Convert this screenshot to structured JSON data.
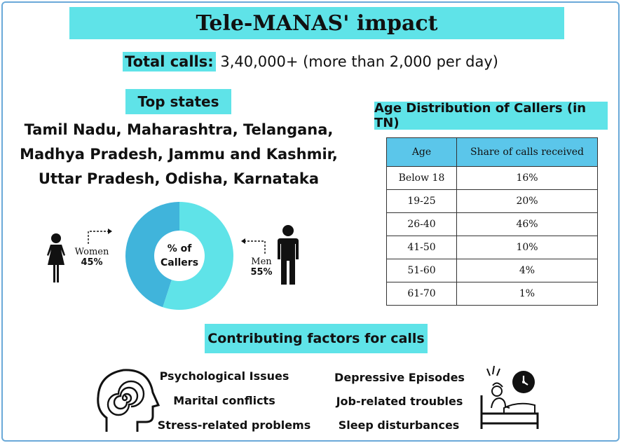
{
  "title": "Tele-MANAS' impact",
  "total_calls": {
    "label": "Total calls:",
    "value": "3,40,000+ (more than 2,000 per day)"
  },
  "top_states": {
    "heading": "Top states",
    "lines": [
      "Tamil Nadu, Maharashtra, Telangana,",
      "Madhya Pradesh, Jammu and Kashmir,",
      "Uttar Pradesh, Odisha, Karnataka"
    ]
  },
  "colors": {
    "accent": "#5fe3e8",
    "table_header": "#5bc6ea",
    "donut_women": "#40b4db",
    "donut_men": "#5fe3e8",
    "border": "#6aa9d8"
  },
  "chart_data": [
    {
      "type": "pie",
      "title": "% of Callers",
      "series": [
        {
          "name": "Women",
          "value": 45,
          "label": "45%"
        },
        {
          "name": "Men",
          "value": 55,
          "label": "55%"
        }
      ]
    },
    {
      "type": "table",
      "title": "Age Distribution of Callers (in TN)",
      "columns": [
        "Age",
        "Share of calls received"
      ],
      "rows": [
        [
          "Below 18",
          "16%"
        ],
        [
          "19-25",
          "20%"
        ],
        [
          "26-40",
          "46%"
        ],
        [
          "41-50",
          "10%"
        ],
        [
          "51-60",
          "4%"
        ],
        [
          "61-70",
          "1%"
        ]
      ]
    }
  ],
  "factors": {
    "heading": "Contributing factors for calls",
    "left": [
      "Psychological Issues",
      "Marital conflicts",
      "Stress-related problems"
    ],
    "right": [
      "Depressive Episodes",
      "Job-related troubles",
      "Sleep disturbances"
    ]
  },
  "icons": [
    "woman-icon",
    "man-icon",
    "head-spiral-icon",
    "sleepless-bed-icon",
    "clock-icon"
  ]
}
